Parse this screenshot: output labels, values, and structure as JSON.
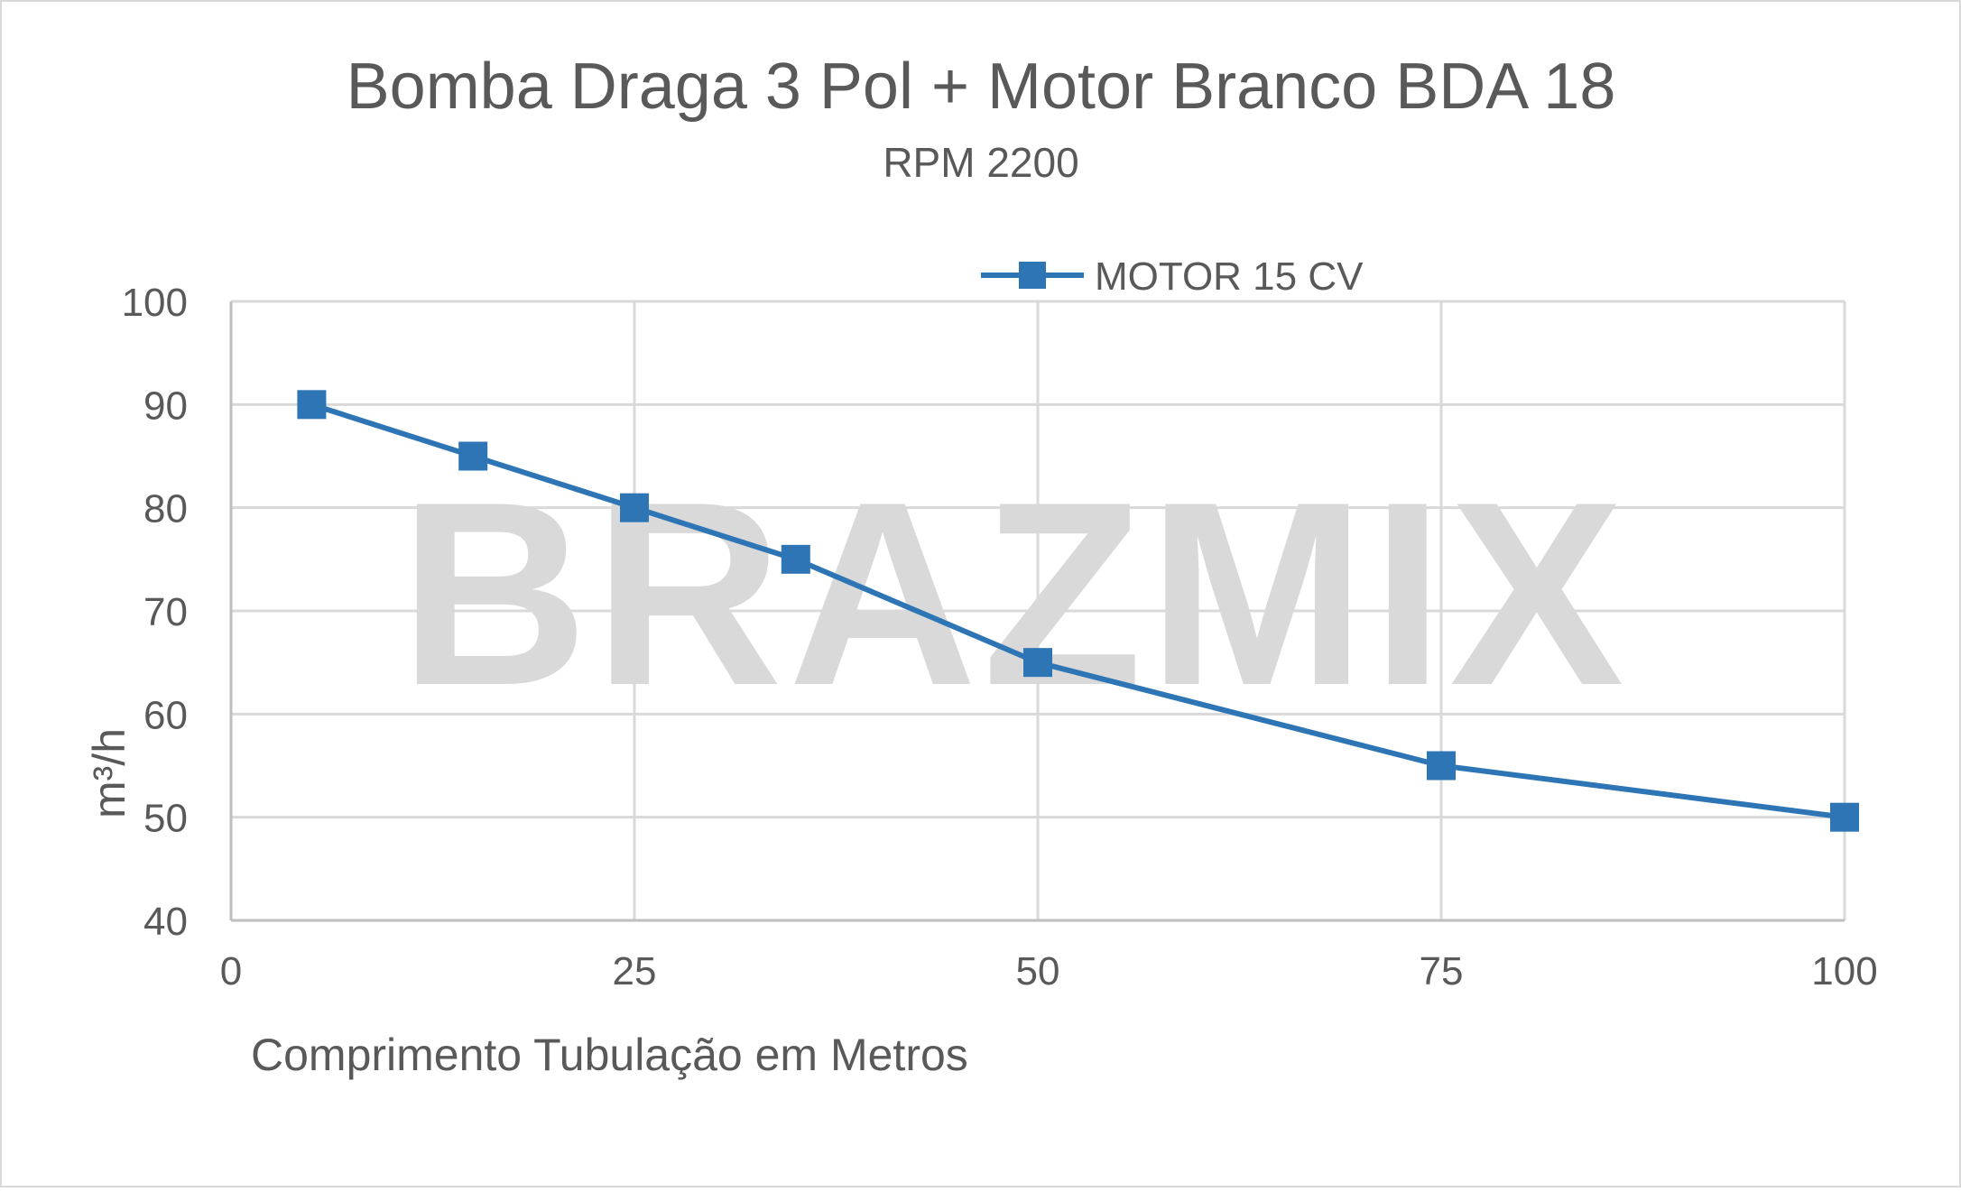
{
  "chart_data": {
    "type": "line",
    "title": "Bomba Draga 3 Pol + Motor Branco BDA 18",
    "subtitle": "RPM 2200",
    "xlabel": "Comprimento Tubulação em Metros",
    "ylabel": "m³/h",
    "xlim": [
      0,
      100
    ],
    "ylim": [
      40,
      100
    ],
    "xticks": [
      0,
      25,
      50,
      75,
      100
    ],
    "yticks": [
      40,
      50,
      60,
      70,
      80,
      90,
      100
    ],
    "grid": true,
    "legend_position": "top",
    "series": [
      {
        "name": "MOTOR 15 CV",
        "x": [
          5,
          15,
          25,
          35,
          50,
          75,
          100
        ],
        "y": [
          90,
          85,
          80,
          75,
          65,
          55,
          50
        ]
      }
    ],
    "watermark": "BRAZMIX"
  },
  "colors": {
    "series": "#2e75b6",
    "grid": "#d9d9d9",
    "axis": "#bfbfbf",
    "text": "#595959",
    "watermark": "#d9d9d9",
    "border": "#d9d9d9"
  }
}
